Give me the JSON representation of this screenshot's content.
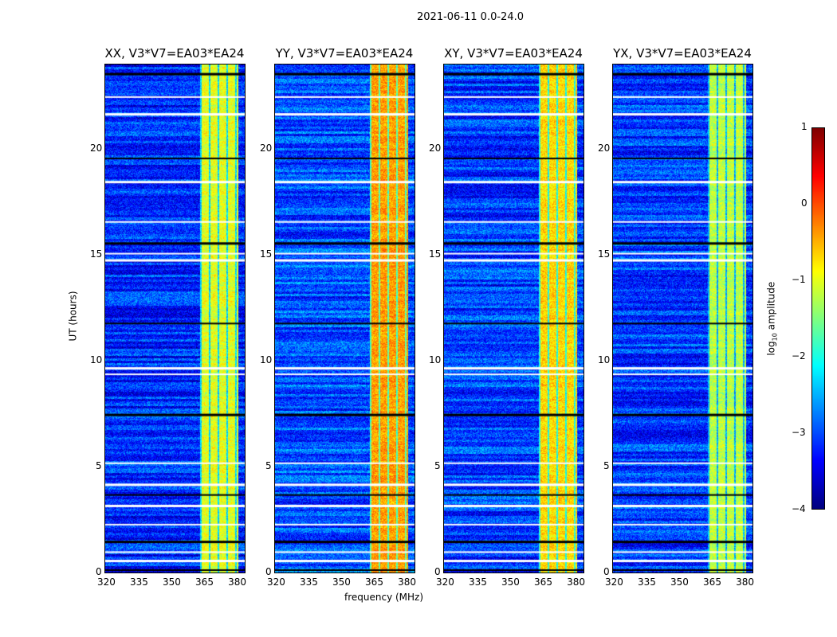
{
  "chart_data": {
    "type": "heatmap",
    "title": "2021-06-11 0.0-24.0",
    "xlabel": "frequency (MHz)",
    "ylabel": "UT (hours)",
    "xlim": [
      320,
      384
    ],
    "ylim": [
      0,
      24
    ],
    "xticks": [
      "320",
      "335",
      "350",
      "365",
      "380"
    ],
    "yticks": [
      "0",
      "5",
      "10",
      "15",
      "20"
    ],
    "colorbar": {
      "label": "log10 amplitude",
      "label_main": "log",
      "label_sub": "10",
      "label_rest": " amplitude",
      "range": [
        -4,
        1
      ],
      "ticks": [
        "1",
        "0",
        "−1",
        "−2",
        "−3",
        "−4"
      ],
      "colormap": "jet"
    },
    "panels": [
      {
        "title": "XX, V3*V7=EA03*EA24",
        "background_log_amp": -3.2,
        "rfi_log_amp": -1.0
      },
      {
        "title": "YY, V3*V7=EA03*EA24",
        "background_log_amp": -3.0,
        "rfi_log_amp": -0.4
      },
      {
        "title": "XY, V3*V7=EA03*EA24",
        "background_log_amp": -3.1,
        "rfi_log_amp": -0.7
      },
      {
        "title": "YX, V3*V7=EA03*EA24",
        "background_log_amp": -3.1,
        "rfi_log_amp": -1.2
      }
    ],
    "rfi_band_mhz": [
      363.5,
      381
    ],
    "flagged_hours": [
      0.15,
      0.6,
      1.0,
      1.5,
      2.3,
      3.2,
      3.7,
      4.2,
      5.2,
      7.5,
      9.4,
      9.7,
      11.8,
      14.8,
      15.1,
      15.6,
      16.6,
      18.5,
      19.6,
      21.7,
      22.5,
      23.6
    ]
  }
}
